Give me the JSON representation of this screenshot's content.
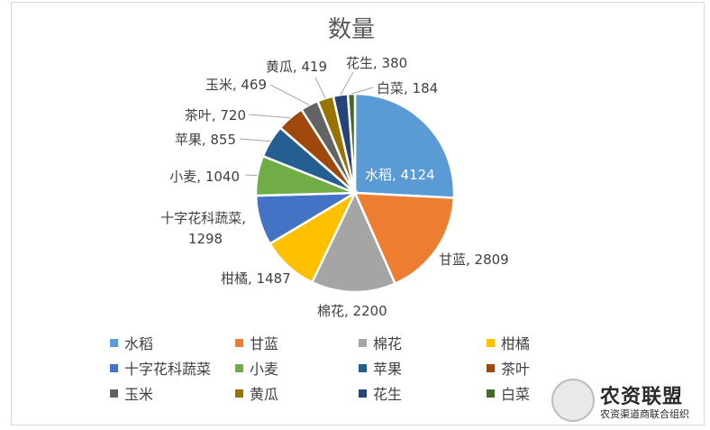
{
  "chart_data": {
    "type": "pie",
    "title": "数量",
    "categories": [
      "水稻",
      "甘蓝",
      "棉花",
      "柑橘",
      "十字花科蔬菜",
      "小麦",
      "苹果",
      "茶叶",
      "玉米",
      "黄瓜",
      "花生",
      "白菜"
    ],
    "values": [
      4124,
      2809,
      2200,
      1487,
      1298,
      1040,
      855,
      720,
      469,
      419,
      380,
      184
    ],
    "colors": [
      "#5b9bd5",
      "#ed7d31",
      "#a5a5a5",
      "#ffc000",
      "#4472c4",
      "#70ad47",
      "#255e91",
      "#9e480e",
      "#636363",
      "#997300",
      "#264478",
      "#43682b"
    ],
    "legend_position": "bottom",
    "data_labels": [
      "水稻, 4124",
      "甘蓝, 2809",
      "棉花, 2200",
      "柑橘, 1487",
      "十字花科蔬菜,",
      "小麦, 1040",
      "苹果, 855",
      "茶叶, 720",
      "玉米, 469",
      "黄瓜, 419",
      "花生, 380",
      "白菜, 184"
    ],
    "data_label_extra": "1298"
  },
  "watermark": {
    "title": "农资联盟",
    "subtitle": "农资渠道商联合组织"
  }
}
